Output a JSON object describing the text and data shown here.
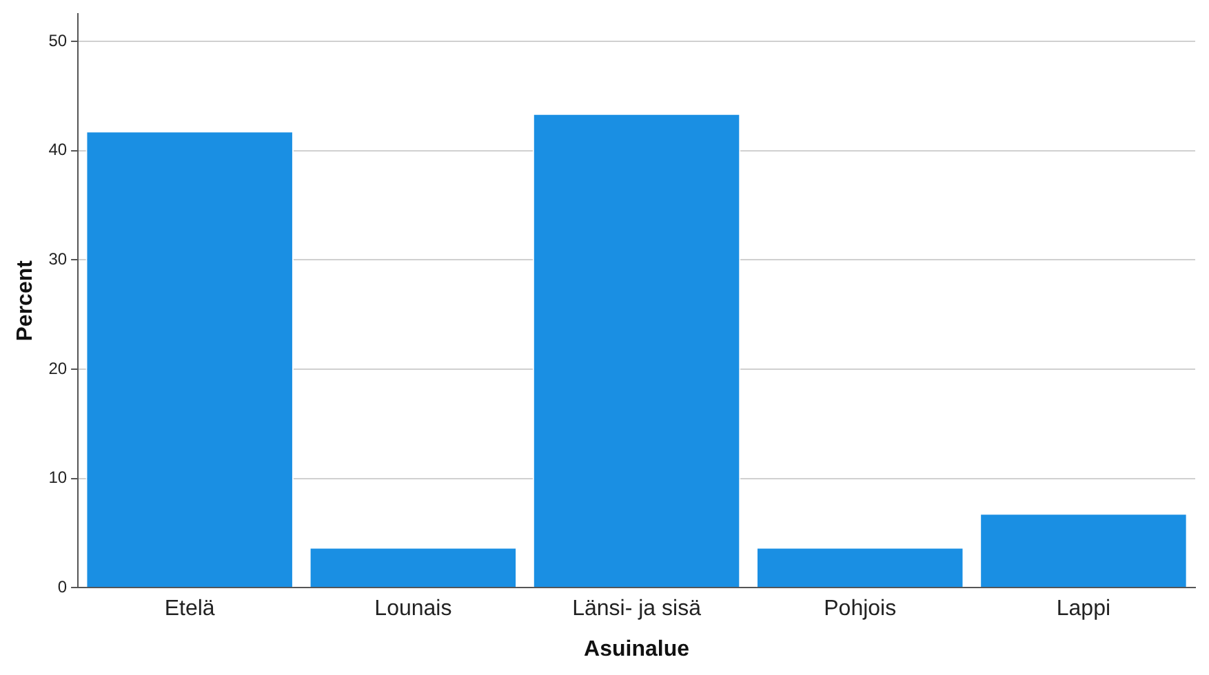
{
  "chart_data": {
    "type": "bar",
    "xlabel": "Asuinalue",
    "ylabel": "Percent",
    "categories": [
      "Etelä",
      "Lounais",
      "Länsi- ja sisä",
      "Pohjois",
      "Lappi"
    ],
    "values": [
      41.8,
      3.7,
      43.4,
      3.7,
      6.8
    ],
    "color": "#1a8fe3",
    "ylim": [
      0,
      52.5
    ],
    "yticks": [
      0,
      10,
      20,
      30,
      40,
      50
    ],
    "grid": "y",
    "legend": false
  }
}
